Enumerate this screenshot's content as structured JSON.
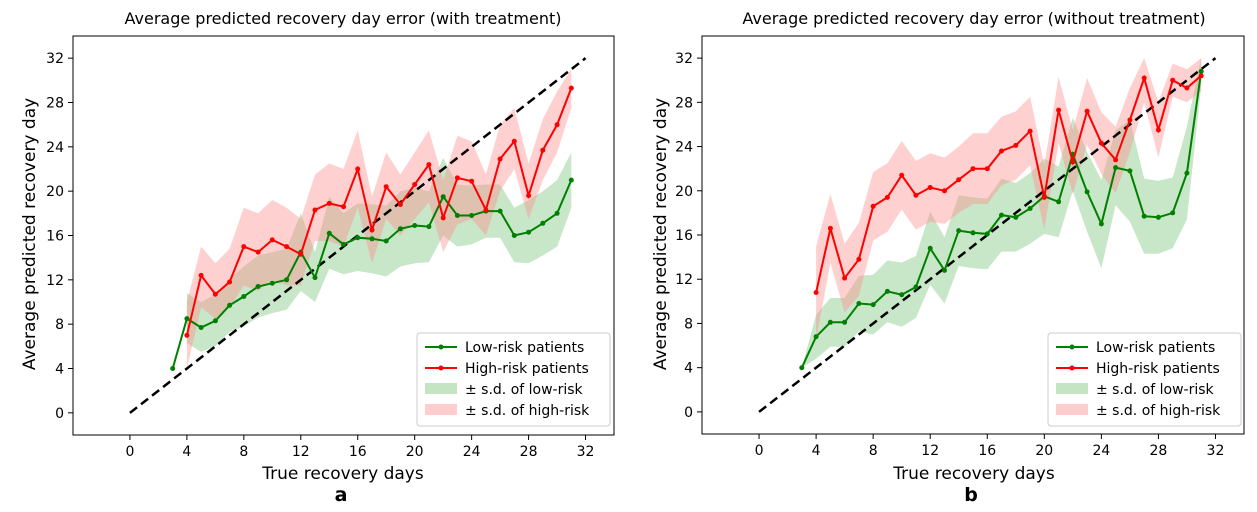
{
  "chart_data": [
    {
      "type": "line",
      "panel_label": "a",
      "title": "Average predicted recovery day error (with treatment)",
      "xlabel": "True recovery days",
      "ylabel": "Average predicted recovery day",
      "xlim": [
        -4,
        34
      ],
      "ylim": [
        -2,
        34
      ],
      "xticks": [
        0,
        4,
        8,
        12,
        16,
        20,
        24,
        28,
        32
      ],
      "yticks": [
        0,
        4,
        8,
        12,
        16,
        20,
        24,
        28,
        32
      ],
      "legend_position": "lower right",
      "reference_line": {
        "x": [
          0,
          32
        ],
        "y": [
          0,
          32
        ],
        "style": "dashed",
        "color": "#000000"
      },
      "series": [
        {
          "name": "Low-risk patients",
          "color": "#008000",
          "x": [
            3,
            4,
            5,
            6,
            7,
            8,
            9,
            10,
            11,
            12,
            13,
            14,
            15,
            16,
            17,
            18,
            19,
            20,
            21,
            22,
            23,
            24,
            25,
            26,
            27,
            28,
            29,
            30,
            31
          ],
          "y": [
            4.0,
            8.5,
            7.7,
            8.3,
            9.7,
            10.5,
            11.4,
            11.7,
            12.0,
            14.5,
            12.2,
            16.2,
            15.2,
            15.8,
            15.7,
            15.5,
            16.6,
            16.9,
            16.8,
            19.5,
            17.8,
            17.8,
            18.2,
            18.2,
            16.0,
            16.3,
            17.1,
            18.0,
            21.0
          ]
        },
        {
          "name": "High-risk patients",
          "color": "#ff0000",
          "x": [
            4,
            5,
            6,
            7,
            8,
            9,
            10,
            11,
            12,
            13,
            14,
            15,
            16,
            17,
            18,
            19,
            20,
            21,
            22,
            23,
            24,
            25,
            26,
            27,
            28,
            29,
            30,
            31
          ],
          "y": [
            7.0,
            12.4,
            10.7,
            11.8,
            15.0,
            14.5,
            15.6,
            15.0,
            14.3,
            18.3,
            18.9,
            18.6,
            22.0,
            16.5,
            20.4,
            18.8,
            20.6,
            22.4,
            17.6,
            21.2,
            20.9,
            18.3,
            22.9,
            24.5,
            19.6,
            23.7,
            26.0,
            29.3
          ]
        }
      ],
      "bands": [
        {
          "name": "± s.d. of low-risk",
          "color": "#7cc47c",
          "x": [
            4,
            5,
            6,
            7,
            8,
            9,
            10,
            11,
            12,
            13,
            14,
            15,
            16,
            17,
            18,
            19,
            20,
            21,
            22,
            23,
            24,
            25,
            26,
            27,
            28,
            29,
            30,
            31
          ],
          "lower": [
            6.3,
            5.5,
            6.0,
            7.3,
            7.8,
            8.6,
            9.0,
            9.3,
            11.0,
            10.0,
            13.0,
            12.5,
            12.8,
            12.6,
            12.3,
            13.2,
            13.5,
            13.6,
            16.0,
            15.0,
            15.2,
            15.8,
            15.8,
            13.6,
            13.5,
            14.2,
            15.0,
            18.5
          ],
          "upper": [
            10.8,
            10.0,
            10.7,
            12.1,
            13.2,
            14.2,
            14.5,
            14.8,
            18.0,
            14.5,
            19.5,
            18.0,
            18.9,
            18.8,
            18.7,
            20.0,
            20.3,
            20.0,
            23.0,
            20.6,
            20.5,
            20.6,
            20.6,
            18.5,
            19.2,
            20.0,
            21.0,
            23.5
          ]
        },
        {
          "name": "± s.d. of high-risk",
          "color": "#ff9090",
          "x": [
            4,
            5,
            6,
            7,
            8,
            9,
            10,
            11,
            12,
            13,
            14,
            15,
            16,
            17,
            18,
            19,
            20,
            21,
            22,
            23,
            24,
            25,
            26,
            27,
            28,
            29,
            30,
            31
          ],
          "lower": [
            4.0,
            9.5,
            8.5,
            9.5,
            11.5,
            11.0,
            12.0,
            11.5,
            11.5,
            15.5,
            15.5,
            15.0,
            18.5,
            13.5,
            17.5,
            16.0,
            17.5,
            19.0,
            14.5,
            17.0,
            17.5,
            16.0,
            20.0,
            22.0,
            17.5,
            21.0,
            23.5,
            27.5
          ],
          "upper": [
            10.0,
            15.0,
            13.5,
            14.8,
            18.5,
            18.0,
            19.2,
            18.5,
            17.5,
            21.5,
            22.5,
            22.0,
            25.5,
            19.5,
            23.5,
            21.5,
            23.5,
            25.5,
            21.0,
            25.0,
            24.5,
            21.5,
            26.0,
            27.5,
            22.5,
            26.5,
            29.0,
            31.0
          ]
        }
      ]
    },
    {
      "type": "line",
      "panel_label": "b",
      "title": "Average predicted recovery day error (without treatment)",
      "xlabel": "True recovery days",
      "ylabel": "Average predicted recovery day",
      "xlim": [
        -4,
        34
      ],
      "ylim": [
        -2,
        34
      ],
      "xticks": [
        0,
        4,
        8,
        12,
        16,
        20,
        24,
        28,
        32
      ],
      "yticks": [
        0,
        4,
        8,
        12,
        16,
        20,
        24,
        28,
        32
      ],
      "legend_position": "lower right",
      "reference_line": {
        "x": [
          0,
          32
        ],
        "y": [
          0,
          32
        ],
        "style": "dashed",
        "color": "#000000"
      },
      "series": [
        {
          "name": "Low-risk patients",
          "color": "#008000",
          "x": [
            3,
            4,
            5,
            6,
            7,
            8,
            9,
            10,
            11,
            12,
            13,
            14,
            15,
            16,
            17,
            18,
            19,
            20,
            21,
            22,
            23,
            24,
            25,
            26,
            27,
            28,
            29,
            30,
            31
          ],
          "y": [
            4.0,
            6.8,
            8.1,
            8.1,
            9.8,
            9.7,
            10.9,
            10.6,
            11.3,
            14.8,
            12.8,
            16.4,
            16.2,
            16.1,
            17.8,
            17.6,
            18.4,
            19.5,
            19.0,
            23.3,
            19.9,
            17.0,
            22.1,
            21.8,
            17.7,
            17.6,
            18.0,
            21.6,
            30.8
          ]
        },
        {
          "name": "High-risk patients",
          "color": "#ff0000",
          "x": [
            4,
            5,
            6,
            7,
            8,
            9,
            10,
            11,
            12,
            13,
            14,
            15,
            16,
            17,
            18,
            19,
            20,
            21,
            22,
            23,
            24,
            25,
            26,
            27,
            28,
            29,
            30,
            31
          ],
          "y": [
            10.8,
            16.6,
            12.1,
            13.8,
            18.6,
            19.4,
            21.4,
            19.6,
            20.3,
            20.0,
            21.0,
            22.0,
            22.0,
            23.6,
            24.1,
            25.4,
            19.4,
            27.3,
            22.6,
            27.2,
            24.3,
            22.8,
            26.4,
            30.2,
            25.5,
            30.0,
            29.3,
            30.4
          ]
        }
      ],
      "bands": [
        {
          "name": "± s.d. of low-risk",
          "color": "#7cc47c",
          "x": [
            3,
            4,
            5,
            6,
            7,
            8,
            9,
            10,
            11,
            12,
            13,
            14,
            15,
            16,
            17,
            18,
            19,
            20,
            21,
            22,
            23,
            24,
            25,
            26,
            27,
            28,
            29,
            30,
            31
          ],
          "lower": [
            4.0,
            4.8,
            5.9,
            5.9,
            7.3,
            7.0,
            8.1,
            7.7,
            8.5,
            11.5,
            9.8,
            13.2,
            13.0,
            12.9,
            14.5,
            14.5,
            15.2,
            16.1,
            15.8,
            20.0,
            16.3,
            13.0,
            18.7,
            17.2,
            14.3,
            14.3,
            14.8,
            17.4,
            29.5
          ],
          "upper": [
            4.0,
            8.8,
            10.3,
            10.3,
            12.3,
            12.4,
            13.7,
            13.5,
            14.1,
            18.1,
            15.8,
            19.6,
            19.4,
            19.3,
            21.1,
            20.7,
            21.6,
            22.9,
            22.2,
            26.6,
            23.5,
            21.0,
            25.5,
            26.4,
            21.1,
            20.9,
            21.2,
            25.8,
            32.1
          ]
        },
        {
          "name": "± s.d. of high-risk",
          "color": "#ff9090",
          "x": [
            4,
            5,
            6,
            7,
            8,
            9,
            10,
            11,
            12,
            13,
            14,
            15,
            16,
            17,
            18,
            19,
            20,
            21,
            22,
            23,
            24,
            25,
            26,
            27,
            28,
            29,
            30,
            31
          ],
          "lower": [
            6.5,
            13.5,
            9.0,
            10.5,
            15.5,
            16.3,
            18.3,
            16.5,
            17.2,
            17.0,
            18.0,
            18.8,
            18.8,
            20.5,
            21.0,
            22.3,
            16.5,
            24.3,
            19.7,
            24.2,
            21.5,
            19.8,
            23.5,
            28.0,
            23.0,
            28.5,
            28.0,
            29.0
          ],
          "upper": [
            15.0,
            19.7,
            15.2,
            17.1,
            21.7,
            22.5,
            24.5,
            22.7,
            23.4,
            23.0,
            24.0,
            25.2,
            25.2,
            26.7,
            27.2,
            28.5,
            22.3,
            30.3,
            25.5,
            30.2,
            27.1,
            25.8,
            29.3,
            32.0,
            28.0,
            31.5,
            31.0,
            32.0
          ]
        }
      ]
    }
  ]
}
